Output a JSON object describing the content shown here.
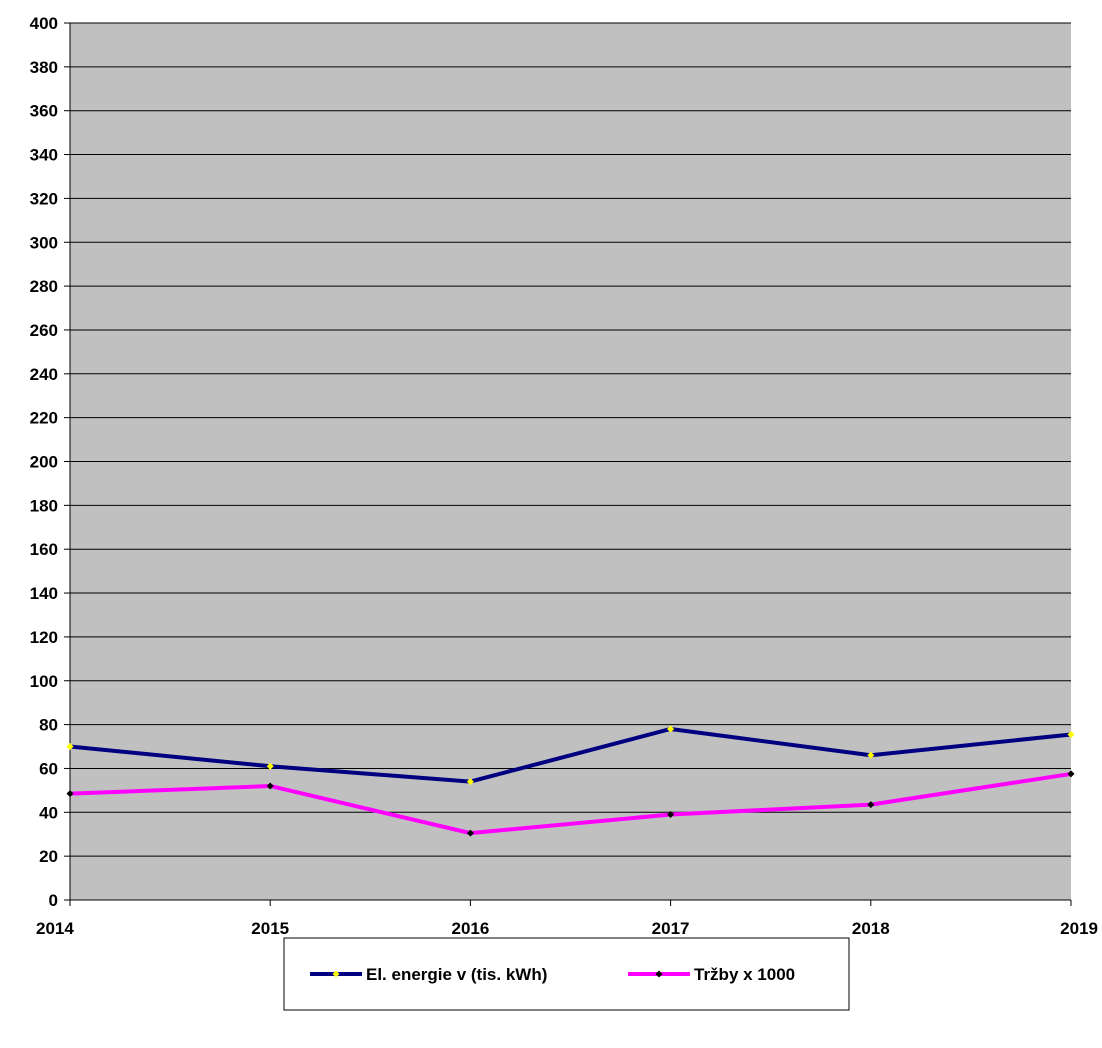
{
  "chart_data": {
    "type": "line",
    "categories": [
      "2014",
      "2015",
      "2016",
      "2017",
      "2018",
      "2019"
    ],
    "series": [
      {
        "name": "El. energie v (tis. kWh)",
        "values": [
          70,
          61,
          54,
          78,
          66,
          75.5
        ],
        "line_color": "#000080",
        "marker_color": "#ffff00"
      },
      {
        "name": "Tržby x 1000",
        "values": [
          48.5,
          52,
          30.5,
          39,
          43.5,
          57.5
        ],
        "line_color": "#ff00ff",
        "marker_color": "#000000"
      }
    ],
    "ylim": [
      0,
      400
    ],
    "ytick_step": 20,
    "grid": true,
    "plot_background": "#c0c0c0",
    "legend_placement": "bottom"
  }
}
